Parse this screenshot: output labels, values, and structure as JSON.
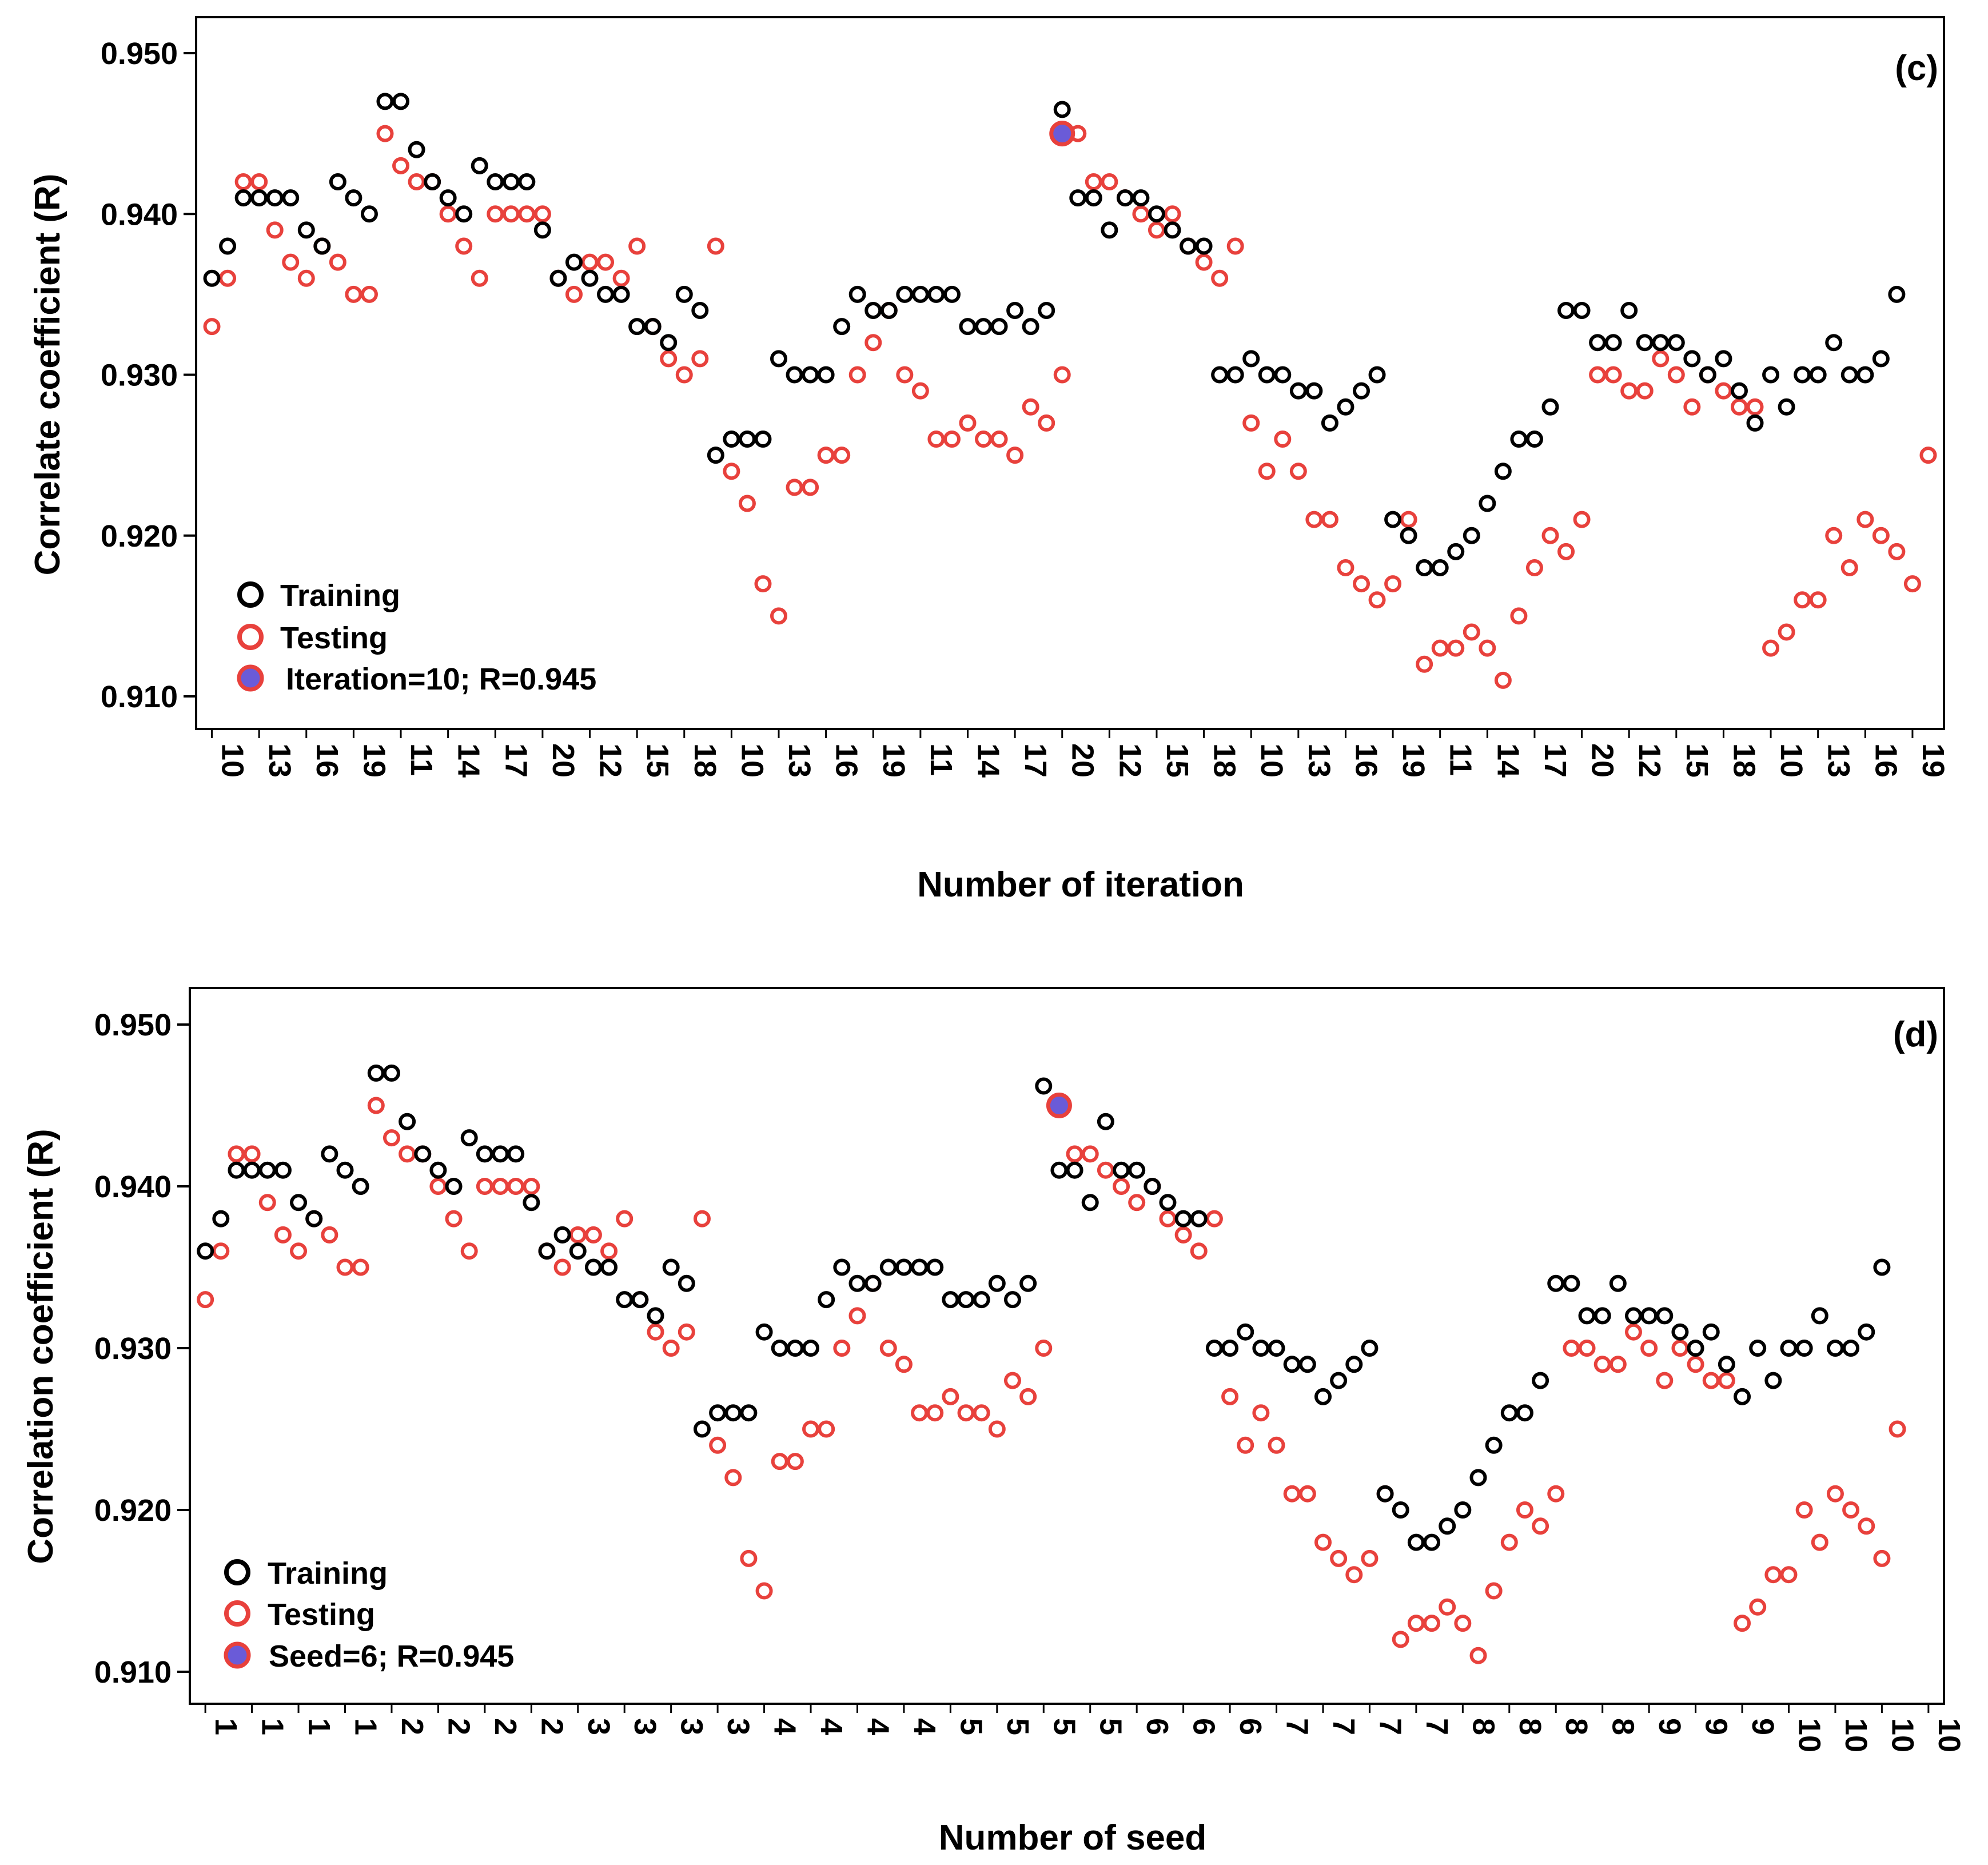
{
  "colors": {
    "training": "#000000",
    "testing": "#e8413c",
    "best_fill": "#6a5bd8",
    "best_edge": "#e8413c",
    "frame": "#000000"
  },
  "chart_data": [
    {
      "type": "scatter",
      "panel_label": "(c)",
      "xlabel": "Number of iteration",
      "ylabel": "Correlate coefficient (R)",
      "ylim": [
        0.91,
        0.95
      ],
      "yticks": [
        "0.910",
        "0.920",
        "0.930",
        "0.940",
        "0.950"
      ],
      "ytick_values": [
        0.91,
        0.92,
        0.93,
        0.94,
        0.95
      ],
      "xtick_labels": [
        "10",
        "13",
        "16",
        "19",
        "11",
        "14",
        "17",
        "20",
        "12",
        "15",
        "18",
        "10",
        "13",
        "16",
        "19",
        "11",
        "14",
        "17",
        "20",
        "12",
        "15",
        "18",
        "10",
        "13",
        "16",
        "19",
        "11",
        "14",
        "17",
        "20",
        "12",
        "15",
        "18",
        "10",
        "13",
        "16",
        "19"
      ],
      "x_range": [
        -1,
        110
      ],
      "xtick_start": 0,
      "xtick_step": 3,
      "legend": {
        "training": "Training",
        "testing": "Testing",
        "best": "Iteration=10; R=0.945"
      },
      "series": [
        {
          "name": "Training",
          "values": [
            0.936,
            0.938,
            0.941,
            0.941,
            0.941,
            0.941,
            0.939,
            0.938,
            0.942,
            0.941,
            0.94,
            0.947,
            0.947,
            0.944,
            0.942,
            0.941,
            0.94,
            0.943,
            0.942,
            0.942,
            0.942,
            0.939,
            0.936,
            0.937,
            0.936,
            0.935,
            0.935,
            0.933,
            0.933,
            0.932,
            0.935,
            0.934,
            0.925,
            0.926,
            0.926,
            0.926,
            0.931,
            0.93,
            0.93,
            0.93,
            0.933,
            0.935,
            0.934,
            0.934,
            0.935,
            0.935,
            0.935,
            0.935,
            0.933,
            0.933,
            0.933,
            0.934,
            0.933,
            0.934,
            0.9465,
            0.941,
            0.941,
            0.939,
            0.941,
            0.941,
            0.94,
            0.939,
            0.938,
            0.938,
            0.93,
            0.93,
            0.931,
            0.93,
            0.93,
            0.929,
            0.929,
            0.927,
            0.928,
            0.929,
            0.93,
            0.921,
            0.92,
            0.918,
            0.918,
            0.919,
            0.92,
            0.922,
            0.924,
            0.926,
            0.926,
            0.928,
            0.934,
            0.934,
            0.932,
            0.932,
            0.934,
            0.932,
            0.932,
            0.932,
            0.931,
            0.93,
            0.931,
            0.929,
            0.927,
            0.93,
            0.928,
            0.93,
            0.93,
            0.932,
            0.93,
            0.93,
            0.931,
            0.935
          ]
        },
        {
          "name": "Testing",
          "values": [
            0.933,
            0.936,
            0.942,
            0.942,
            0.939,
            0.937,
            0.936,
            0.938,
            0.937,
            0.935,
            0.935,
            0.945,
            0.943,
            0.942,
            0.942,
            0.94,
            0.938,
            0.936,
            0.94,
            0.94,
            0.94,
            0.94,
            0.936,
            0.935,
            0.937,
            0.937,
            0.936,
            0.938,
            0.933,
            0.931,
            0.93,
            0.931,
            0.938,
            0.924,
            0.922,
            0.917,
            0.915,
            0.923,
            0.923,
            0.925,
            0.925,
            0.93,
            0.932,
            0.934,
            0.93,
            0.929,
            0.926,
            0.926,
            0.927,
            0.926,
            0.926,
            0.925,
            0.928,
            0.927,
            0.93,
            0.945,
            0.942,
            0.942,
            0.941,
            0.94,
            0.939,
            0.94,
            0.938,
            0.937,
            0.936,
            0.938,
            0.927,
            0.924,
            0.926,
            0.924,
            0.921,
            0.921,
            0.918,
            0.917,
            0.916,
            0.917,
            0.921,
            0.912,
            0.913,
            0.913,
            0.914,
            0.913,
            0.911,
            0.915,
            0.918,
            0.92,
            0.919,
            0.921,
            0.93,
            0.93,
            0.929,
            0.929,
            0.931,
            0.93,
            0.928,
            0.93,
            0.929,
            0.928,
            0.928,
            0.913,
            0.914,
            0.916,
            0.916,
            0.92,
            0.918,
            0.921,
            0.92,
            0.919,
            0.917,
            0.925
          ]
        }
      ],
      "best": {
        "index": 54,
        "value": 0.945
      }
    },
    {
      "type": "scatter",
      "panel_label": "(d)",
      "xlabel": "Number of seed",
      "ylabel": "Correlation coefficient (R)",
      "ylim": [
        0.91,
        0.95
      ],
      "yticks": [
        "0.910",
        "0.920",
        "0.930",
        "0.940",
        "0.950"
      ],
      "ytick_values": [
        0.91,
        0.92,
        0.93,
        0.94,
        0.95
      ],
      "xtick_labels": [
        "1",
        "1",
        "1",
        "1",
        "2",
        "2",
        "2",
        "2",
        "3",
        "3",
        "3",
        "3",
        "4",
        "4",
        "4",
        "4",
        "5",
        "5",
        "5",
        "5",
        "6",
        "6",
        "6",
        "7",
        "7",
        "7",
        "7",
        "8",
        "8",
        "8",
        "8",
        "9",
        "9",
        "9",
        "10",
        "10",
        "10",
        "10"
      ],
      "x_range": [
        -1,
        112
      ],
      "xtick_start": 0,
      "xtick_step": 3,
      "legend": {
        "training": "Training",
        "testing": "Testing",
        "best": "Seed=6; R=0.945"
      },
      "series": [
        {
          "name": "Training",
          "values": [
            0.936,
            0.938,
            0.941,
            0.941,
            0.941,
            0.941,
            0.939,
            0.938,
            0.942,
            0.941,
            0.94,
            0.947,
            0.947,
            0.944,
            0.942,
            0.941,
            0.94,
            0.943,
            0.942,
            0.942,
            0.942,
            0.939,
            0.936,
            0.937,
            0.936,
            0.935,
            0.935,
            0.933,
            0.933,
            0.932,
            0.935,
            0.934,
            0.925,
            0.926,
            0.926,
            0.926,
            0.931,
            0.93,
            0.93,
            0.93,
            0.933,
            0.935,
            0.934,
            0.934,
            0.935,
            0.935,
            0.935,
            0.935,
            0.933,
            0.933,
            0.933,
            0.934,
            0.933,
            0.934,
            0.9462,
            0.941,
            0.941,
            0.939,
            0.944,
            0.941,
            0.941,
            0.94,
            0.939,
            0.938,
            0.938,
            0.93,
            0.93,
            0.931,
            0.93,
            0.93,
            0.929,
            0.929,
            0.927,
            0.928,
            0.929,
            0.93,
            0.921,
            0.92,
            0.918,
            0.918,
            0.919,
            0.92,
            0.922,
            0.924,
            0.926,
            0.926,
            0.928,
            0.934,
            0.934,
            0.932,
            0.932,
            0.934,
            0.932,
            0.932,
            0.932,
            0.931,
            0.93,
            0.931,
            0.929,
            0.927,
            0.93,
            0.928,
            0.93,
            0.93,
            0.932,
            0.93,
            0.93,
            0.931,
            0.935
          ]
        },
        {
          "name": "Testing",
          "values": [
            0.933,
            0.936,
            0.942,
            0.942,
            0.939,
            0.937,
            0.936,
            0.938,
            0.937,
            0.935,
            0.935,
            0.945,
            0.943,
            0.942,
            0.942,
            0.94,
            0.938,
            0.936,
            0.94,
            0.94,
            0.94,
            0.94,
            0.936,
            0.935,
            0.937,
            0.937,
            0.936,
            0.938,
            0.933,
            0.931,
            0.93,
            0.931,
            0.938,
            0.924,
            0.922,
            0.917,
            0.915,
            0.923,
            0.923,
            0.925,
            0.925,
            0.93,
            0.932,
            0.934,
            0.93,
            0.929,
            0.926,
            0.926,
            0.927,
            0.926,
            0.926,
            0.925,
            0.928,
            0.927,
            0.93,
            0.945,
            0.942,
            0.942,
            0.941,
            0.94,
            0.939,
            0.94,
            0.938,
            0.937,
            0.936,
            0.938,
            0.927,
            0.924,
            0.926,
            0.924,
            0.921,
            0.921,
            0.918,
            0.917,
            0.916,
            0.917,
            0.921,
            0.912,
            0.913,
            0.913,
            0.914,
            0.913,
            0.911,
            0.915,
            0.918,
            0.92,
            0.919,
            0.921,
            0.93,
            0.93,
            0.929,
            0.929,
            0.931,
            0.93,
            0.928,
            0.93,
            0.929,
            0.928,
            0.928,
            0.913,
            0.914,
            0.916,
            0.916,
            0.92,
            0.918,
            0.921,
            0.92,
            0.919,
            0.917,
            0.925
          ]
        }
      ],
      "best": {
        "index": 55,
        "value": 0.945
      }
    }
  ]
}
